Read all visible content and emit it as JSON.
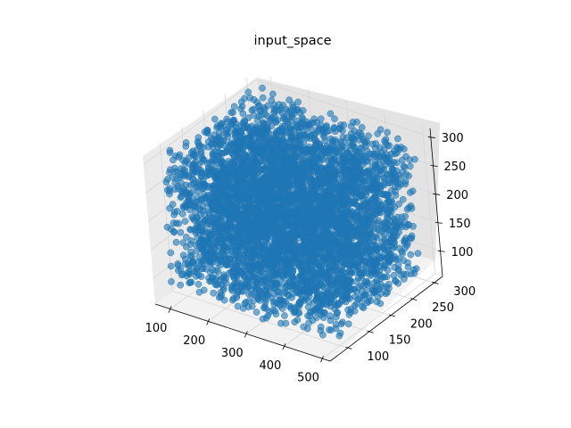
{
  "chart_data": {
    "type": "scatter",
    "projection": "3d",
    "title": "input_space",
    "xlabel": "",
    "ylabel": "",
    "zlabel": "",
    "grid": true,
    "marker_color": "#1f77b4",
    "marker_alpha": 0.6,
    "xlim": [
      60,
      520
    ],
    "ylim": [
      60,
      320
    ],
    "zlim": [
      55,
      315
    ],
    "x_ticks": [
      100,
      200,
      300,
      400,
      500
    ],
    "y_ticks": [
      100,
      150,
      200,
      250,
      300
    ],
    "z_ticks": [
      100,
      150,
      200,
      250,
      300
    ],
    "point_distribution": {
      "kind": "uniform-cube",
      "count": 5000,
      "x_range": [
        80,
        500
      ],
      "y_range": [
        80,
        300
      ],
      "z_range": [
        70,
        310
      ]
    }
  }
}
